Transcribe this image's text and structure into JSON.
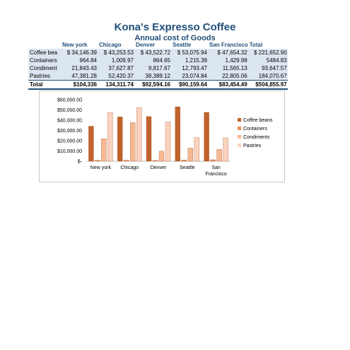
{
  "title": "Kona's Expresso Coffee",
  "subtitle": "Annual cost of Goods",
  "table": {
    "headers": [
      "",
      "New york",
      "Chicago",
      "Denver",
      "Seattle",
      "San Francisco",
      "Total"
    ],
    "rows": [
      [
        "Coffee bea",
        "$ 34,146.39",
        "$ 43,253.53",
        "$ 43,522.72",
        "$ 53,075.94",
        "$ 47,654.32",
        "$ 221,652.90"
      ],
      [
        "Containers",
        "964.84",
        "1,009.97",
        "864.65",
        "1,215.39",
        "1,429.98",
        "5484.83"
      ],
      [
        "Condiment",
        "21,843.43",
        "37,627.87",
        "9,817.67",
        "12,793.47",
        "11,565.13",
        "93,647.57"
      ],
      [
        "Pastries",
        "47,381.28",
        "52,420.37",
        "38,389.12",
        "23,074.84",
        "22,805.06",
        "184,070.67"
      ]
    ],
    "total": [
      "Total",
      "$104,336",
      "134,311.74",
      "$92,594.16",
      "$90,159.64",
      "$83,454.49",
      "$504,855.97"
    ]
  },
  "chart_data": {
    "type": "bar",
    "categories": [
      "New york",
      "Chicago",
      "Denver",
      "Seattle",
      "San Francisco"
    ],
    "series": [
      {
        "name": "Coffee beans",
        "values": [
          34146.39,
          43253.53,
          43522.72,
          53075.94,
          47654.32
        ],
        "color": "#c0622a"
      },
      {
        "name": "Containers",
        "values": [
          964.84,
          1009.97,
          864.65,
          1215.39,
          1429.98
        ],
        "color": "#e8955a"
      },
      {
        "name": "Condiments",
        "values": [
          21843.43,
          37627.87,
          9817.67,
          12793.47,
          11565.13
        ],
        "color": "#f6b892"
      },
      {
        "name": "Pastries",
        "values": [
          47381.28,
          52420.37,
          38389.12,
          23074.84,
          22805.06
        ],
        "color": "#fbd2bd"
      }
    ],
    "yticks": [
      "$-",
      "$10,000.00",
      "$20,000.00",
      "$30,000.00",
      "$40,000.00",
      "$50,000.00",
      "$60,000.00"
    ],
    "ylim": [
      0,
      60000
    ],
    "legend": "right",
    "grid": false
  }
}
